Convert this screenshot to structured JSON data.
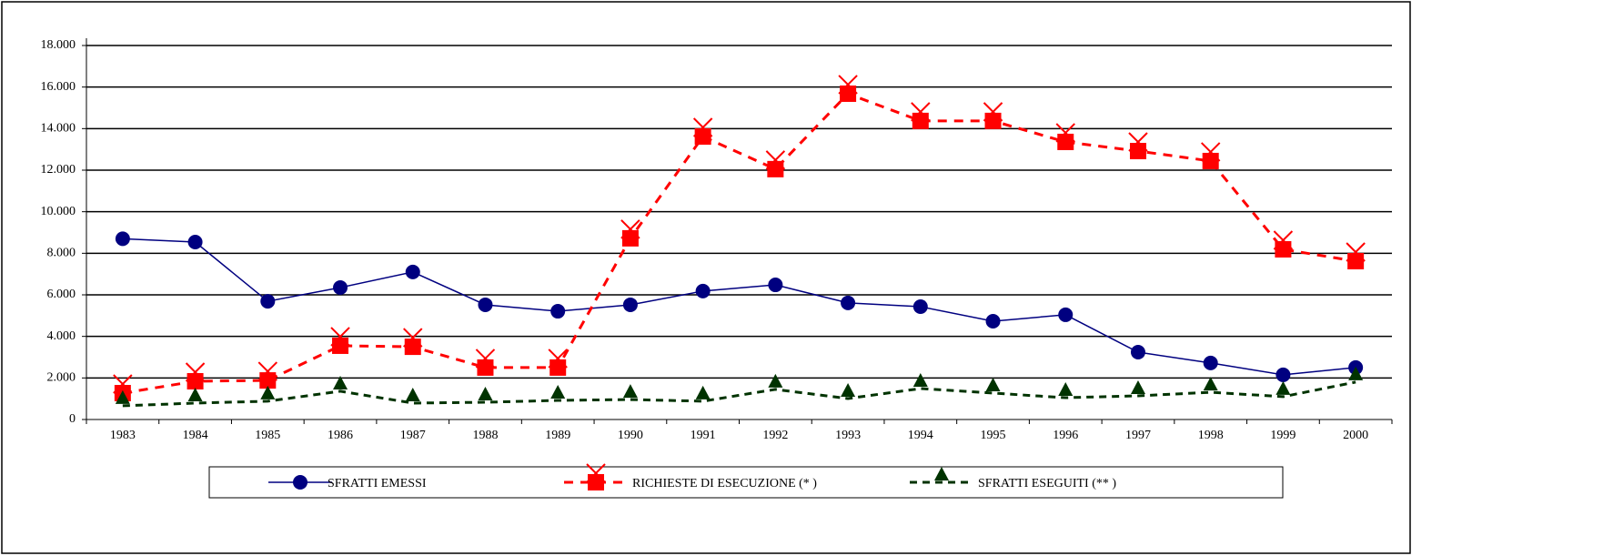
{
  "chart_data": {
    "type": "line",
    "categories": [
      "1983",
      "1984",
      "1985",
      "1986",
      "1987",
      "1988",
      "1989",
      "1990",
      "1991",
      "1992",
      "1993",
      "1994",
      "1995",
      "1996",
      "1997",
      "1998",
      "1999",
      "2000"
    ],
    "series": [
      {
        "name": "SFRATTI EMESSI",
        "color": "#000080",
        "marker": "circle",
        "dash": "none",
        "values": [
          8700,
          8540,
          5690,
          6350,
          7100,
          5520,
          5210,
          5520,
          6180,
          6480,
          5610,
          5430,
          4730,
          5040,
          3240,
          2720,
          2150,
          2500
        ]
      },
      {
        "name": "RICHIESTE DI ESECUZIONE  (* )",
        "color": "#ff0000",
        "marker": "square",
        "dash": "10,8",
        "values": [
          1270,
          1840,
          1880,
          3550,
          3500,
          2500,
          2500,
          8720,
          13620,
          12050,
          15680,
          14370,
          14370,
          13360,
          12920,
          12440,
          8190,
          7620
        ]
      },
      {
        "name": "SFRATTI ESEGUITI (** )",
        "color": "#003300",
        "marker": "triangle",
        "dash": "8,6",
        "values": [
          660,
          790,
          880,
          1360,
          790,
          830,
          920,
          960,
          880,
          1450,
          1010,
          1490,
          1270,
          1050,
          1140,
          1310,
          1100,
          1800
        ]
      }
    ],
    "ylim": [
      0,
      18000
    ],
    "yticks": [
      0,
      {
        "value": 2000,
        "label": "2.000"
      },
      {
        "value": 4000,
        "label": "4.000"
      },
      {
        "value": 6000,
        "label": "6.000"
      },
      {
        "value": 8000,
        "label": "8.000"
      },
      {
        "value": 10000,
        "label": "10.000"
      },
      {
        "value": 12000,
        "label": "12.000"
      },
      {
        "value": 14000,
        "label": "14.000"
      },
      {
        "value": 16000,
        "label": "16.000"
      },
      {
        "value": 18000,
        "label": "18.000"
      }
    ],
    "grid": true
  }
}
